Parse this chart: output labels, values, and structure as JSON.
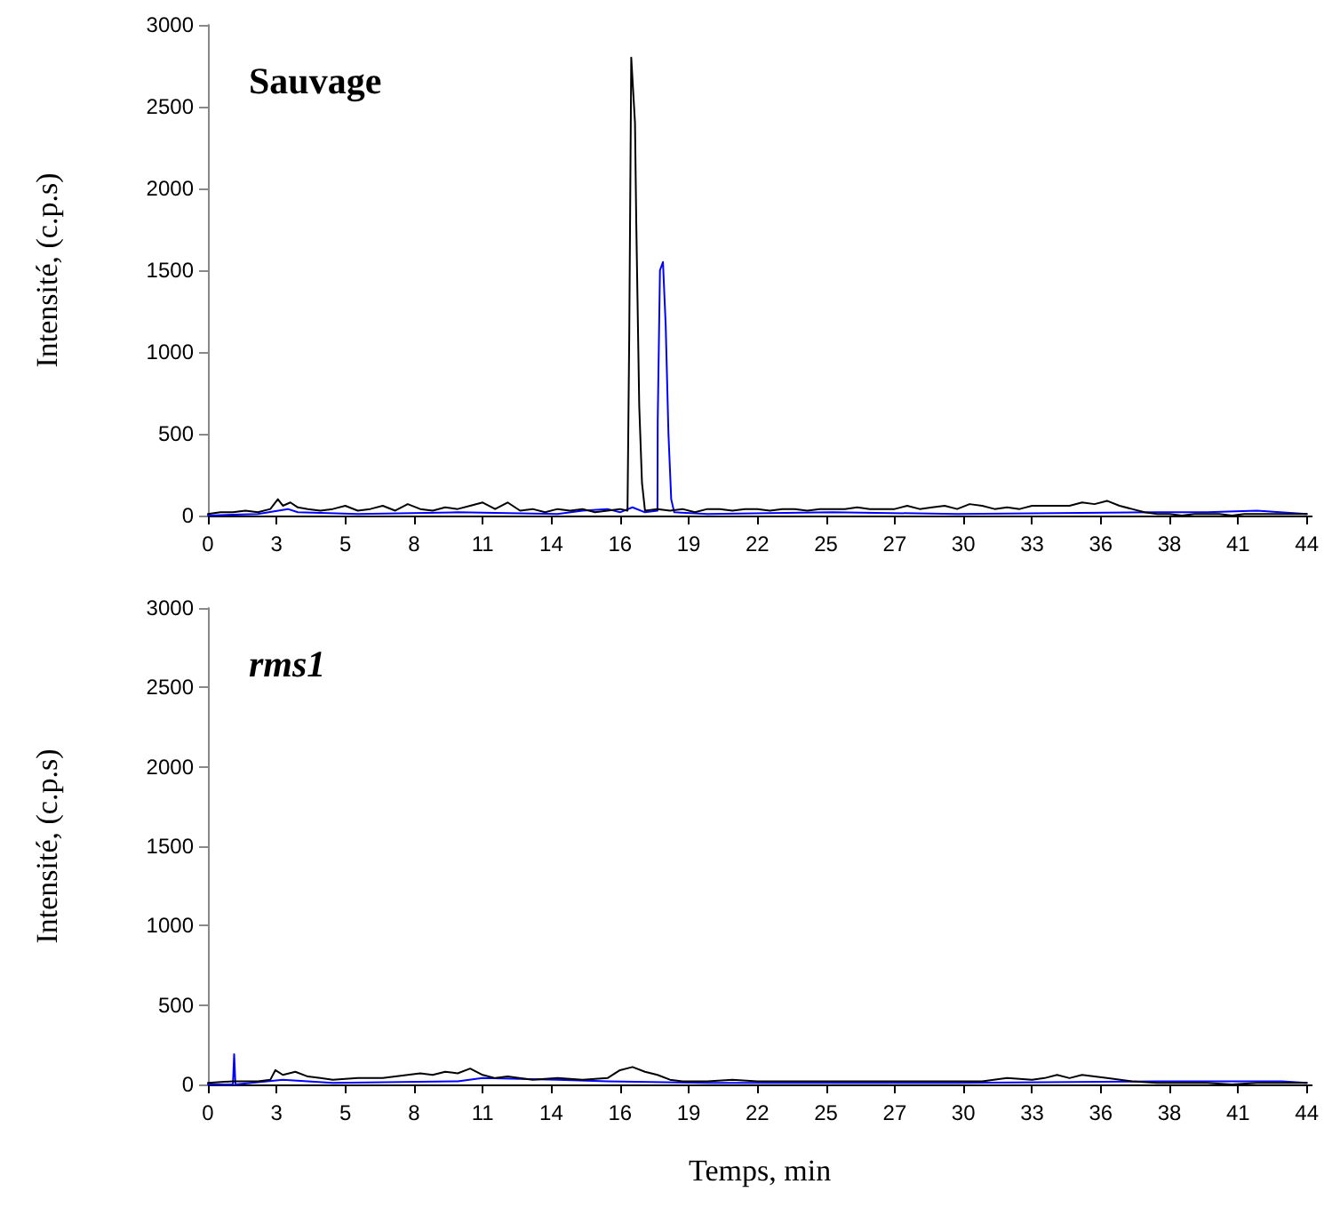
{
  "chart_data": [
    {
      "type": "line",
      "title": "Sauvage",
      "ylabel": "Intensité, (c.p.s)",
      "xlim": [
        0,
        44.2
      ],
      "ylim": [
        0,
        3000
      ],
      "yticks": [
        0,
        500,
        1000,
        1500,
        2000,
        2500,
        3000
      ],
      "xticks": [
        0,
        {
          "value": 2.75,
          "label": "3"
        },
        {
          "value": 5.5,
          "label": "5"
        },
        {
          "value": 8.25,
          "label": "8"
        },
        11,
        {
          "value": 13.75,
          "label": "14"
        },
        {
          "value": 16.5,
          "label": "16"
        },
        {
          "value": 19.25,
          "label": "19"
        },
        22,
        {
          "value": 24.75,
          "label": "25"
        },
        {
          "value": 27.5,
          "label": "27"
        },
        {
          "value": 30.25,
          "label": "30"
        },
        33,
        {
          "value": 35.75,
          "label": "36"
        },
        {
          "value": 38.5,
          "label": "38"
        },
        {
          "value": 41.25,
          "label": "41"
        },
        44
      ],
      "grid": false,
      "marker": "none",
      "line_style": "solid",
      "series": [
        {
          "color": "#0000ff",
          "x": [
            0,
            2,
            3.2,
            3.6,
            6,
            10,
            14,
            15,
            16,
            16.5,
            17,
            17.5,
            18,
            18.01,
            18.1,
            18.22,
            18.33,
            18.44,
            18.55,
            18.67,
            20,
            25,
            30,
            38,
            40,
            42,
            44
          ],
          "values": [
            0,
            10,
            40,
            20,
            10,
            20,
            10,
            30,
            40,
            20,
            50,
            20,
            30,
            580,
            1500,
            1550,
            1160,
            500,
            100,
            20,
            10,
            20,
            10,
            20,
            20,
            30,
            10
          ]
        },
        {
          "color": "#000000",
          "x": [
            0,
            0.5,
            1,
            1.5,
            2,
            2.5,
            2.8,
            3,
            3.3,
            3.6,
            4,
            4.5,
            5,
            5.5,
            6,
            6.5,
            7,
            7.5,
            8,
            8.5,
            9,
            9.5,
            10,
            10.5,
            11,
            11.5,
            12,
            12.5,
            13,
            13.5,
            14,
            14.5,
            15,
            15.5,
            16,
            16.5,
            16.8,
            16.87,
            16.95,
            17.1,
            17.15,
            17.27,
            17.38,
            17.5,
            18,
            18.5,
            19,
            19.5,
            20,
            20.5,
            21,
            21.5,
            22,
            22.5,
            23,
            23.5,
            24,
            24.5,
            25,
            25.5,
            26,
            26.5,
            27,
            27.5,
            28,
            28.5,
            29,
            29.5,
            30,
            30.5,
            31,
            31.5,
            32,
            32.5,
            33,
            33.5,
            34,
            34.5,
            35,
            35.5,
            36,
            36.5,
            37,
            37.5,
            38,
            38.5,
            39,
            39.5,
            40,
            40.5,
            41,
            41.5,
            42,
            42.5,
            43,
            43.5,
            44
          ],
          "values": [
            10,
            20,
            20,
            30,
            20,
            40,
            100,
            60,
            80,
            50,
            40,
            30,
            40,
            60,
            30,
            40,
            60,
            30,
            70,
            40,
            30,
            50,
            40,
            60,
            80,
            40,
            80,
            30,
            40,
            20,
            40,
            30,
            40,
            20,
            30,
            40,
            30,
            1100,
            2800,
            2400,
            1800,
            670,
            200,
            30,
            40,
            30,
            40,
            20,
            40,
            40,
            30,
            40,
            40,
            30,
            40,
            40,
            30,
            40,
            40,
            40,
            50,
            40,
            40,
            40,
            60,
            40,
            50,
            60,
            40,
            70,
            60,
            40,
            50,
            40,
            60,
            60,
            60,
            60,
            80,
            70,
            90,
            60,
            40,
            20,
            10,
            10,
            0,
            10,
            10,
            10,
            0,
            10,
            10,
            10,
            10,
            10,
            10
          ]
        }
      ]
    },
    {
      "type": "line",
      "title": "rms1",
      "xlabel": "Temps, min",
      "ylabel": "Intensité, (c.p.s)",
      "xlim": [
        0,
        44.2
      ],
      "ylim": [
        0,
        3000
      ],
      "yticks": [
        0,
        500,
        1000,
        1500,
        2000,
        2500,
        3000
      ],
      "xticks": [
        0,
        {
          "value": 2.75,
          "label": "3"
        },
        {
          "value": 5.5,
          "label": "5"
        },
        {
          "value": 8.25,
          "label": "8"
        },
        11,
        {
          "value": 13.75,
          "label": "14"
        },
        {
          "value": 16.5,
          "label": "16"
        },
        {
          "value": 19.25,
          "label": "19"
        },
        22,
        {
          "value": 24.75,
          "label": "25"
        },
        {
          "value": 27.5,
          "label": "27"
        },
        {
          "value": 30.25,
          "label": "30"
        },
        33,
        {
          "value": 35.75,
          "label": "36"
        },
        {
          "value": 38.5,
          "label": "38"
        },
        {
          "value": 41.25,
          "label": "41"
        },
        44
      ],
      "grid": false,
      "marker": "none",
      "line_style": "solid",
      "series": [
        {
          "color": "#0000ff",
          "x": [
            0,
            1,
            1.05,
            1.1,
            3,
            5,
            10,
            11,
            14,
            16,
            20,
            30,
            38,
            41,
            43,
            44
          ],
          "values": [
            0,
            0,
            190,
            0,
            30,
            10,
            20,
            40,
            30,
            20,
            10,
            10,
            20,
            20,
            20,
            10
          ]
        },
        {
          "color": "#000000",
          "x": [
            0,
            1,
            2,
            2.5,
            2.7,
            3,
            3.5,
            4,
            4.5,
            5,
            6,
            7,
            8,
            8.5,
            9,
            9.5,
            10,
            10.5,
            11,
            11.5,
            12,
            13,
            14,
            15,
            16,
            16.5,
            17,
            17.5,
            18,
            18.5,
            19,
            20,
            21,
            22,
            23,
            24,
            25,
            26,
            27,
            28,
            29,
            30,
            31,
            32,
            33,
            33.5,
            34,
            34.5,
            35,
            36,
            37,
            38,
            39,
            40,
            41,
            42,
            43,
            44
          ],
          "values": [
            10,
            20,
            20,
            30,
            90,
            60,
            80,
            50,
            40,
            30,
            40,
            40,
            60,
            70,
            60,
            80,
            70,
            100,
            60,
            40,
            50,
            30,
            40,
            30,
            40,
            90,
            110,
            80,
            60,
            30,
            20,
            20,
            30,
            20,
            20,
            20,
            20,
            20,
            20,
            20,
            20,
            20,
            20,
            40,
            30,
            40,
            60,
            40,
            60,
            40,
            20,
            10,
            10,
            10,
            0,
            10,
            10,
            10
          ]
        }
      ]
    }
  ]
}
